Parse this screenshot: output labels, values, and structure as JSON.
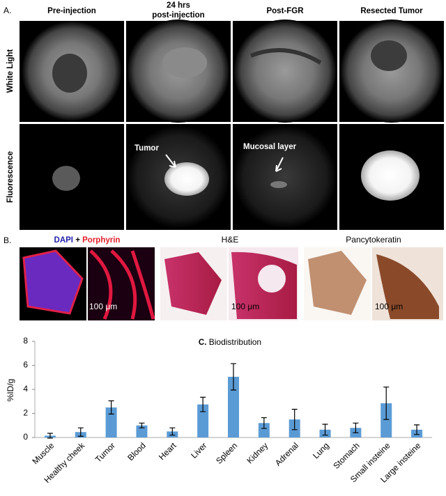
{
  "panel_a": {
    "label": "A.",
    "columns": [
      [
        "Pre-injection"
      ],
      [
        "24 hrs",
        "post-injection"
      ],
      [
        "Post-FGR"
      ],
      [
        "Resected Tumor"
      ]
    ],
    "rows": [
      "White Light",
      "Fluorescence"
    ],
    "annotations": [
      "Tumor",
      "Mucosal layer"
    ]
  },
  "panel_b": {
    "label": "B.",
    "stain_parts": [
      "DAPI",
      "+",
      "Porphyrin"
    ],
    "titles": [
      "H&E",
      "Pancytokeratin"
    ],
    "scale_bars": [
      "100 μm",
      "100 μm",
      "100 μm"
    ]
  },
  "chart_data": {
    "type": "bar",
    "panel_label": "C.",
    "title": "Biodistribution",
    "y_label": "%ID/g",
    "categories": [
      "Muscle",
      "Healthy cheek",
      "Tumor",
      "Blood",
      "Heart",
      "Liver",
      "Spleen",
      "Kidney",
      "Adrenal",
      "Lung",
      "Stomach",
      "Small insteine",
      "Large insteine"
    ],
    "values": [
      0.15,
      0.45,
      2.5,
      1.0,
      0.5,
      2.75,
      5.05,
      1.2,
      1.5,
      0.65,
      0.8,
      2.85,
      0.65
    ],
    "errors": [
      0.2,
      0.35,
      0.55,
      0.2,
      0.3,
      0.6,
      1.1,
      0.45,
      0.85,
      0.45,
      0.4,
      1.35,
      0.4
    ],
    "color": "#5b9bd5",
    "ylim": [
      0,
      8
    ],
    "yticks": [
      0,
      2,
      4,
      6,
      8
    ],
    "grid": false
  }
}
